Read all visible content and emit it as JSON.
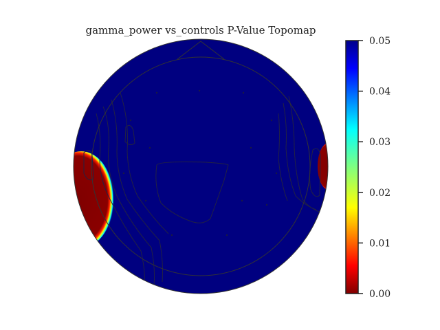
{
  "chart_data": {
    "type": "heatmap",
    "subtype": "topomap",
    "title": "gamma_power vs_controls P-Value Topomap",
    "colormap": "jet",
    "colorbar": {
      "range": [
        0.0,
        0.05
      ],
      "ticks": [
        0.0,
        0.01,
        0.02,
        0.03,
        0.04,
        0.05
      ],
      "tick_labels": [
        "0.00",
        "0.01",
        "0.02",
        "0.03",
        "0.04",
        "0.05"
      ],
      "placement": "right"
    },
    "dominant_value": 0.05,
    "regions": [
      {
        "location": "left-temporal",
        "p_value": 0.0
      },
      {
        "location": "right-temporal",
        "p_value": 0.0
      }
    ]
  }
}
